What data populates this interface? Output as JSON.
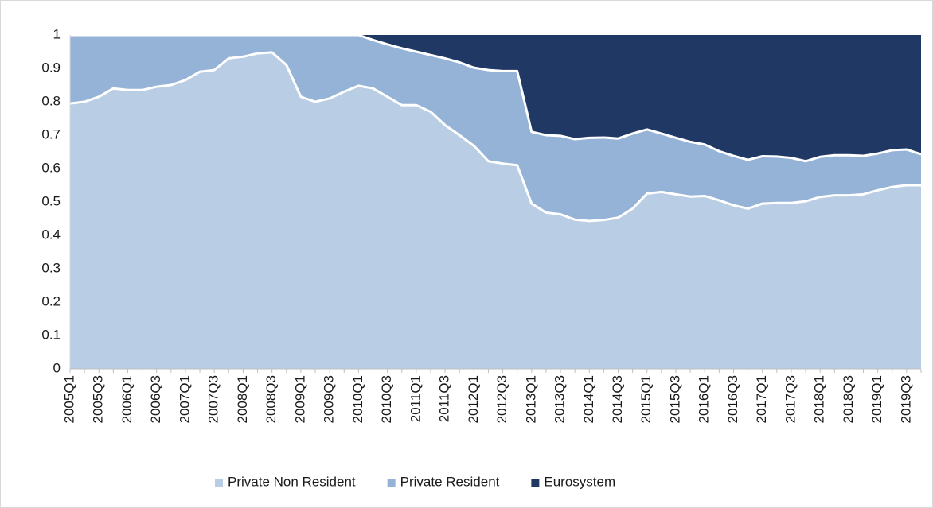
{
  "chart_data": {
    "type": "stacked_area",
    "categories": [
      "2005Q1",
      null,
      "2005Q3",
      null,
      "2006Q1",
      null,
      "2006Q3",
      null,
      "2007Q1",
      null,
      "2007Q3",
      null,
      "2008Q1",
      null,
      "2008Q3",
      null,
      "2009Q1",
      null,
      "2009Q3",
      null,
      "2010Q1",
      null,
      "2010Q3",
      null,
      "2011Q1",
      null,
      "2011Q3",
      null,
      "2012Q1",
      null,
      "2012Q3",
      null,
      "2013Q1",
      null,
      "2013Q3",
      null,
      "2014Q1",
      null,
      "2014Q3",
      null,
      "2015Q1",
      null,
      "2015Q3",
      null,
      "2016Q1",
      null,
      "2016Q3",
      null,
      "2017Q1",
      null,
      "2017Q3",
      null,
      "2018Q1",
      null,
      "2018Q3",
      null,
      "2019Q1",
      null,
      "2019Q3",
      null
    ],
    "series": [
      {
        "name": "Private Non Resident",
        "color": "#b9cde5",
        "values": [
          0.795,
          0.8,
          0.815,
          0.84,
          0.835,
          0.835,
          0.845,
          0.85,
          0.865,
          0.89,
          0.895,
          0.93,
          0.935,
          0.945,
          0.948,
          0.91,
          0.815,
          0.8,
          0.81,
          0.83,
          0.848,
          0.84,
          0.815,
          0.79,
          0.79,
          0.77,
          0.73,
          0.7,
          0.668,
          0.622,
          0.615,
          0.61,
          0.495,
          0.468,
          0.463,
          0.447,
          0.443,
          0.446,
          0.453,
          0.48,
          0.525,
          0.53,
          0.523,
          0.516,
          0.518,
          0.505,
          0.49,
          0.48,
          0.495,
          0.497,
          0.497,
          0.502,
          0.515,
          0.52,
          0.52,
          0.523,
          0.535,
          0.545,
          0.55,
          0.55
        ]
      },
      {
        "name": "Private Resident",
        "color": "#95b3d7",
        "values": [
          0.205,
          0.2,
          0.185,
          0.16,
          0.165,
          0.165,
          0.155,
          0.15,
          0.135,
          0.11,
          0.105,
          0.07,
          0.065,
          0.055,
          0.052,
          0.09,
          0.185,
          0.2,
          0.19,
          0.17,
          0.152,
          0.145,
          0.157,
          0.17,
          0.16,
          0.17,
          0.2,
          0.218,
          0.234,
          0.273,
          0.277,
          0.282,
          0.215,
          0.232,
          0.235,
          0.241,
          0.249,
          0.247,
          0.237,
          0.225,
          0.192,
          0.175,
          0.169,
          0.164,
          0.154,
          0.147,
          0.148,
          0.146,
          0.142,
          0.139,
          0.135,
          0.12,
          0.12,
          0.12,
          0.12,
          0.115,
          0.11,
          0.11,
          0.107,
          0.093
        ]
      },
      {
        "name": "Eurosystem",
        "color": "#203864",
        "values": [
          0,
          0,
          0,
          0,
          0,
          0,
          0,
          0,
          0,
          0,
          0,
          0,
          0,
          0,
          0,
          0,
          0,
          0,
          0,
          0,
          0,
          0.015,
          0.028,
          0.04,
          0.05,
          0.06,
          0.07,
          0.082,
          0.098,
          0.105,
          0.108,
          0.108,
          0.29,
          0.3,
          0.302,
          0.312,
          0.308,
          0.307,
          0.31,
          0.295,
          0.283,
          0.295,
          0.308,
          0.32,
          0.328,
          0.348,
          0.362,
          0.374,
          0.363,
          0.364,
          0.368,
          0.378,
          0.365,
          0.36,
          0.36,
          0.362,
          0.355,
          0.345,
          0.343,
          0.357
        ]
      }
    ],
    "ylim": [
      0,
      1
    ],
    "yticks": [
      0,
      0.1,
      0.2,
      0.3,
      0.4,
      0.5,
      0.6,
      0.7,
      0.8,
      0.9,
      1
    ],
    "grid": false,
    "legend": "bottom"
  }
}
